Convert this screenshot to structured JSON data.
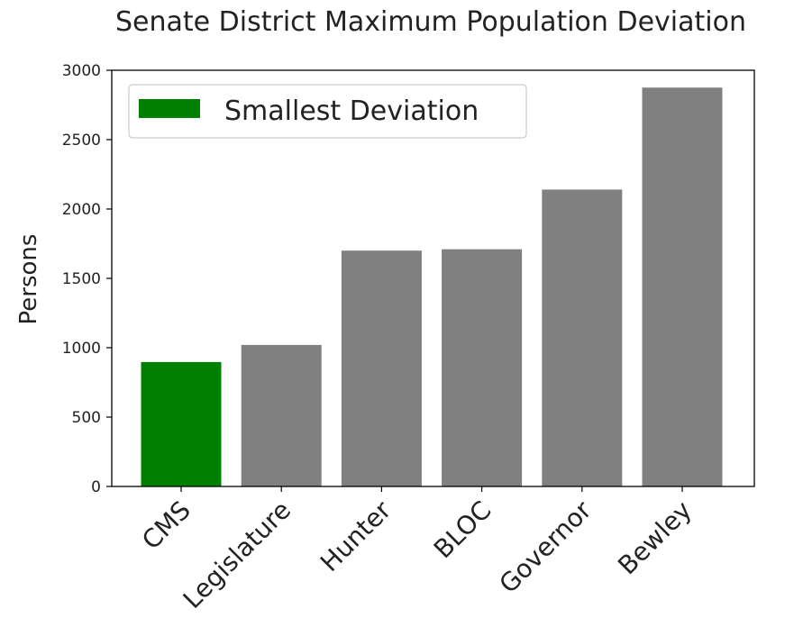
{
  "chart_data": {
    "type": "bar",
    "title": "Senate District Maximum Population Deviation",
    "ylabel": "Persons",
    "xlabel": "",
    "categories": [
      "CMS",
      "Legislature",
      "Hunter",
      "BLOC",
      "Governor",
      "Bewley"
    ],
    "values": [
      897,
      1020,
      1700,
      1710,
      2140,
      2875
    ],
    "bar_colors": [
      "#008000",
      "#808080",
      "#808080",
      "#808080",
      "#808080",
      "#808080"
    ],
    "ylim": [
      0,
      3000
    ],
    "yticks": [
      0,
      500,
      1000,
      1500,
      2000,
      2500,
      3000
    ],
    "grid": false,
    "legend": {
      "placement": "top-left",
      "entries": [
        {
          "label": "Smallest Deviation",
          "color": "#008000"
        }
      ]
    }
  }
}
